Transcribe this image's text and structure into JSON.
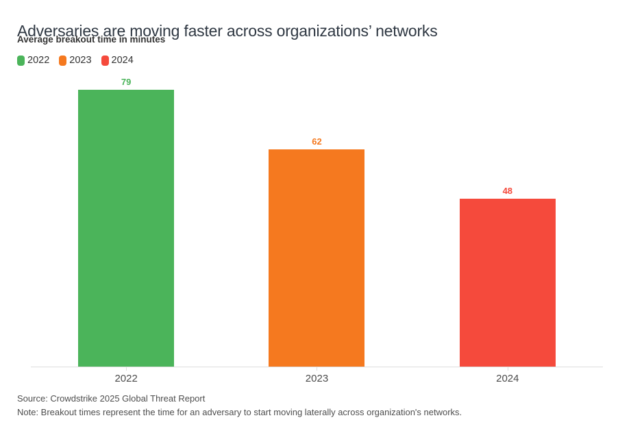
{
  "header": {
    "title": "Adversaries are moving faster across organizations’ networks",
    "subtitle": "Average breakout time in minutes"
  },
  "legend": {
    "items": [
      {
        "label": "2022",
        "color": "#4bb45a"
      },
      {
        "label": "2023",
        "color": "#f5791f"
      },
      {
        "label": "2024",
        "color": "#f54a3c"
      }
    ]
  },
  "chart_data": {
    "type": "bar",
    "title": "Adversaries are moving faster across organizations’ networks",
    "subtitle": "Average breakout time in minutes",
    "categories": [
      "2022",
      "2023",
      "2024"
    ],
    "values": [
      79,
      62,
      48
    ],
    "value_labels": [
      "79",
      "62",
      "48"
    ],
    "colors": [
      "#4bb45a",
      "#f5791f",
      "#f54a3c"
    ],
    "xlabel": "",
    "ylabel": "Average breakout time (minutes)",
    "ylim": [
      0,
      79
    ],
    "grid": false,
    "y_axis_visible": false,
    "legend_position": "top-left",
    "legend_entries": [
      "2022",
      "2023",
      "2024"
    ],
    "axis_line_color": "#dddddd"
  },
  "footer": {
    "source": "Source: Crowdstrike 2025 Global Threat Report",
    "note": "Note: Breakout times represent the time for an adversary to start moving laterally across organization's networks."
  }
}
